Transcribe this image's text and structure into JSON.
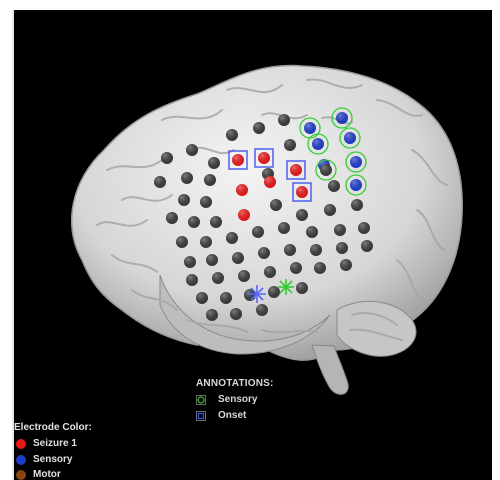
{
  "annotations": {
    "title": "ANNOTATIONS:",
    "items": [
      {
        "label": "Sensory",
        "marker": "green-circle-icon",
        "color": "#33cc33"
      },
      {
        "label": "Onset",
        "marker": "blue-square-icon",
        "color": "#4455ee"
      }
    ]
  },
  "legend": {
    "title": "Electrode Color:",
    "items": [
      {
        "label": "Seizure 1",
        "color": "#e81818"
      },
      {
        "label": "Sensory",
        "color": "#1e3cc8"
      },
      {
        "label": "Motor",
        "color": "#8b4513"
      }
    ]
  },
  "colors": {
    "background": "#000000",
    "brain": "#d9d9d9",
    "electrode_default": "#3a3a3a",
    "seizure": "#e81818",
    "sensory": "#1e3cc8",
    "onset_box": "#4455ee",
    "sensory_ring": "#33cc33"
  }
}
